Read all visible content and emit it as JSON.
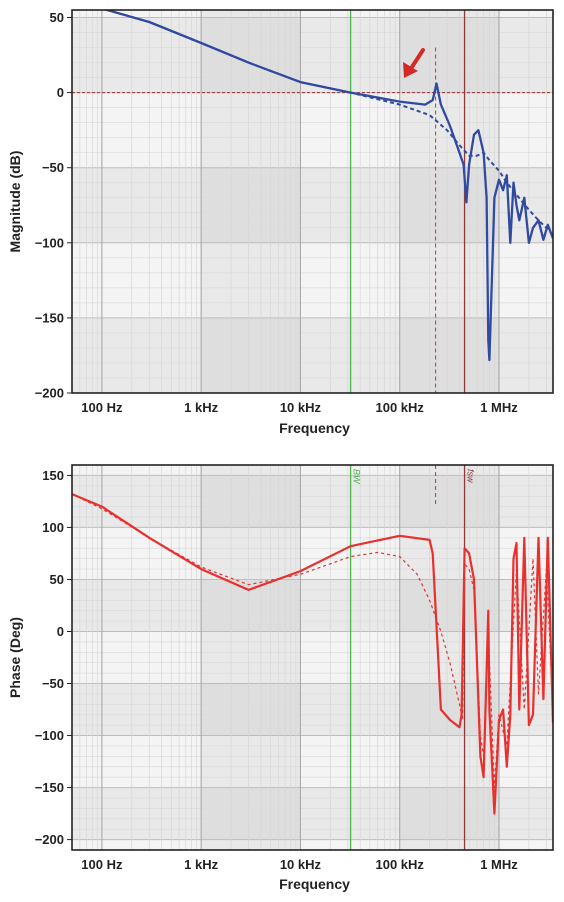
{
  "chart_data": [
    {
      "type": "line",
      "xlabel": "Frequency",
      "ylabel": "Magnitude (dB)",
      "x_scale": "log",
      "xlim": [
        "50 Hz",
        "3.5 MHz"
      ],
      "ylim": [
        -200,
        55
      ],
      "x_tick_labels": [
        "100 Hz",
        "1 kHz",
        "10 kHz",
        "100 kHz",
        "1 MHz"
      ],
      "y_ticks": [
        50,
        0,
        -50,
        -100,
        -150,
        -200
      ],
      "y_tick_labels": [
        "50",
        "0",
        "−50",
        "−100",
        "−150",
        "−200"
      ],
      "grid": true,
      "annotations": {
        "bw_marker_hz": 32000,
        "peak_marker_hz": 230000,
        "fsw_marker_hz": 450000,
        "zero_db_reference": 0,
        "arrow": "points to resonant peak near 230 kHz"
      },
      "series": [
        {
          "style": "solid",
          "color": "#2f4aa0",
          "x": [
            50,
            100,
            300,
            1000,
            3000,
            10000,
            32000,
            100000,
            180000,
            215000,
            235000,
            260000,
            320000,
            400000,
            440000,
            470000,
            500000,
            560000,
            620000,
            700000,
            750000,
            780000,
            800000,
            900000,
            1000000,
            1100000,
            1200000,
            1300000,
            1400000,
            1500000,
            1600000,
            1800000,
            2000000,
            2200000,
            2500000,
            2800000,
            3100000,
            3500000
          ],
          "y": [
            64,
            56,
            47,
            33,
            20,
            7,
            0,
            -6,
            -8,
            -5,
            6,
            -8,
            -22,
            -40,
            -48,
            -73,
            -48,
            -28,
            -25,
            -40,
            -70,
            -165,
            -178,
            -70,
            -58,
            -65,
            -55,
            -100,
            -60,
            -75,
            -85,
            -70,
            -100,
            -90,
            -85,
            -98,
            -88,
            -97
          ]
        },
        {
          "style": "dashed",
          "color": "#2f4aa0",
          "x": [
            50,
            100,
            300,
            1000,
            3000,
            10000,
            32000,
            100000,
            200000,
            300000,
            400000,
            500000,
            600000,
            700000,
            800000,
            1000000,
            1200000,
            1500000,
            2000000,
            2500000,
            3000000,
            3500000
          ],
          "y": [
            64,
            56,
            47,
            33,
            20,
            7,
            0,
            -8,
            -15,
            -25,
            -35,
            -42,
            -42,
            -40,
            -45,
            -52,
            -60,
            -68,
            -78,
            -85,
            -90,
            -95
          ]
        }
      ]
    },
    {
      "type": "line",
      "xlabel": "Frequency",
      "ylabel": "Phase (Deg)",
      "x_scale": "log",
      "xlim": [
        "50 Hz",
        "3.5 MHz"
      ],
      "ylim": [
        -210,
        160
      ],
      "x_tick_labels": [
        "100 Hz",
        "1 kHz",
        "10 kHz",
        "100 kHz",
        "1 MHz"
      ],
      "y_ticks": [
        150,
        100,
        50,
        0,
        -50,
        -100,
        -150,
        -200
      ],
      "y_tick_labels": [
        "150",
        "100",
        "50",
        "0",
        "−50",
        "−100",
        "−150",
        "−200"
      ],
      "grid": true,
      "annotations": {
        "bw_marker_hz": 32000,
        "bw_marker_label": "BW",
        "peak_marker_hz": 230000,
        "fsw_marker_hz": 450000,
        "fsw_marker_label": "fsw"
      },
      "series": [
        {
          "style": "solid",
          "color": "#e8302e",
          "x": [
            50,
            100,
            300,
            1000,
            3000,
            10000,
            32000,
            100000,
            200000,
            215000,
            260000,
            320000,
            400000,
            420000,
            450000,
            500000,
            560000,
            650000,
            700000,
            780000,
            800000,
            900000,
            1000000,
            1100000,
            1200000,
            1300000,
            1400000,
            1500000,
            1600000,
            1800000,
            2000000,
            2200000,
            2500000,
            2800000,
            3100000,
            3500000
          ],
          "y": [
            132,
            120,
            90,
            60,
            40,
            58,
            82,
            92,
            88,
            75,
            -75,
            -85,
            -92,
            -80,
            80,
            75,
            50,
            -120,
            -140,
            20,
            -75,
            -175,
            -85,
            -75,
            -130,
            -80,
            70,
            85,
            -75,
            90,
            -90,
            -80,
            90,
            -65,
            90,
            -88
          ]
        },
        {
          "style": "dashed",
          "color": "#e8302e",
          "x": [
            50,
            100,
            300,
            1000,
            3000,
            10000,
            32000,
            60000,
            100000,
            150000,
            200000,
            260000,
            320000,
            400000,
            430000,
            450000,
            500000,
            560000,
            650000,
            700000,
            780000,
            900000,
            1000000,
            1200000,
            1500000,
            1800000,
            2200000,
            2500000,
            3000000,
            3500000
          ],
          "y": [
            132,
            118,
            90,
            62,
            45,
            55,
            72,
            76,
            72,
            55,
            30,
            0,
            -30,
            -70,
            -85,
            65,
            60,
            40,
            -100,
            -120,
            0,
            -150,
            -80,
            -110,
            60,
            -75,
            70,
            -60,
            60,
            -75
          ]
        }
      ]
    }
  ]
}
